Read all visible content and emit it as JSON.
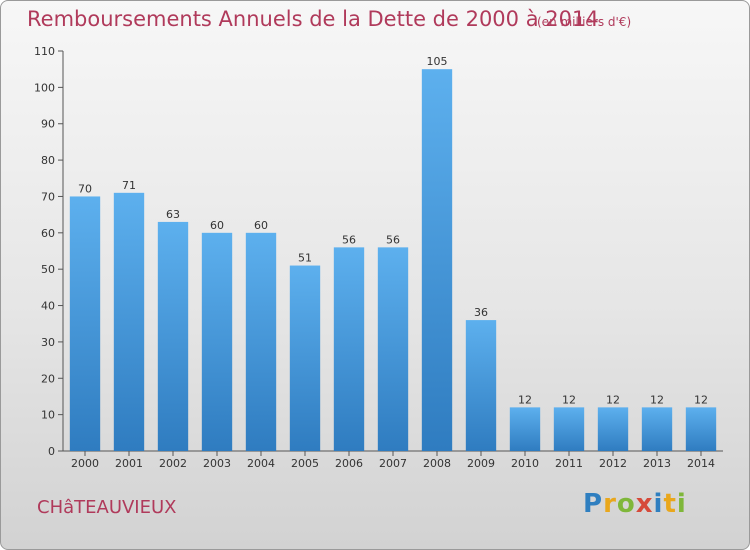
{
  "chart_data": {
    "type": "bar",
    "title": "Remboursements Annuels de la Dette de 2000 à 2014",
    "unit_note": "(en milliers d'€)",
    "categories": [
      "2000",
      "2001",
      "2002",
      "2003",
      "2004",
      "2005",
      "2006",
      "2007",
      "2008",
      "2009",
      "2010",
      "2011",
      "2012",
      "2013",
      "2014"
    ],
    "values": [
      70,
      71,
      63,
      60,
      60,
      51,
      56,
      56,
      105,
      36,
      12,
      12,
      12,
      12,
      12
    ],
    "ylim": [
      0,
      110
    ],
    "yticks": [
      0,
      10,
      20,
      30,
      40,
      50,
      60,
      70,
      80,
      90,
      100,
      110
    ],
    "grid": false,
    "bar_color": "#4a9ee0"
  },
  "commune": "CHâTEAUVIEUX",
  "brand": {
    "letters": [
      "P",
      "r",
      "o",
      "x",
      "i",
      "t",
      "i"
    ]
  }
}
